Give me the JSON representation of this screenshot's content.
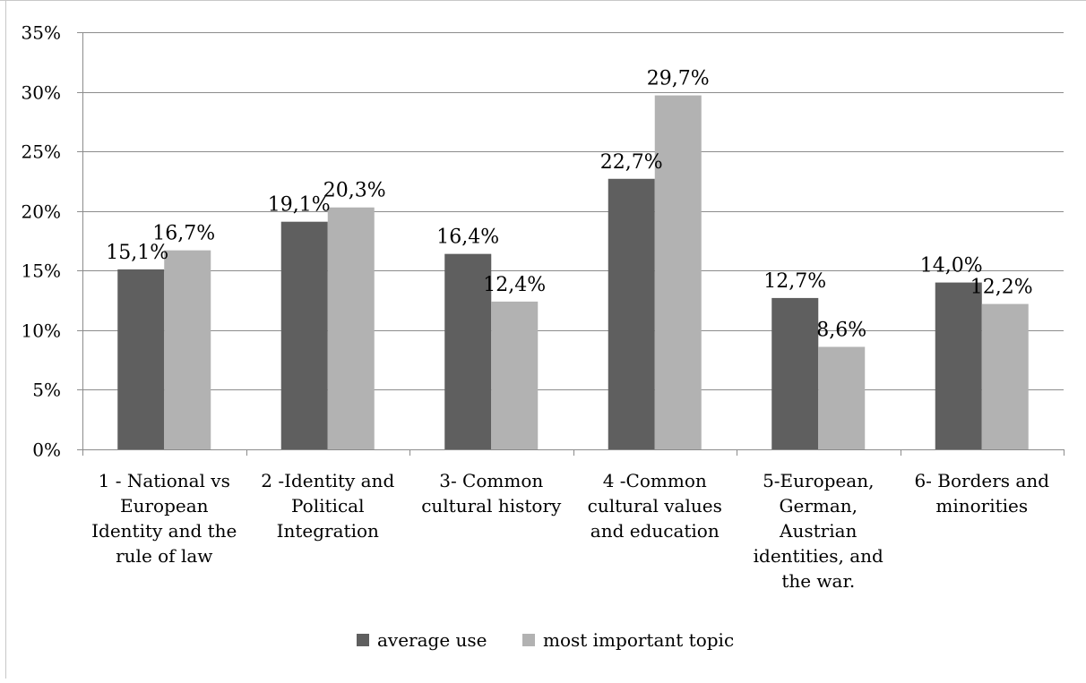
{
  "chart_data": {
    "type": "bar",
    "title": "",
    "xlabel": "",
    "ylabel": "",
    "categories": [
      [
        "1 - National vs",
        "European",
        "Identity and the",
        "rule of law"
      ],
      [
        "2 -Identity and",
        "Political",
        "Integration"
      ],
      [
        "3- Common",
        "cultural history"
      ],
      [
        "4 -Common",
        "cultural values",
        "and education"
      ],
      [
        "5-European,",
        "German,",
        "Austrian",
        "identities, and",
        "the war."
      ],
      [
        "6- Borders and",
        "minorities"
      ]
    ],
    "series": [
      {
        "name": "average use",
        "color": "#5f5f5f",
        "values": [
          15.1,
          19.1,
          16.4,
          22.7,
          12.7,
          14.0
        ],
        "labels": [
          "15,1%",
          "19,1%",
          "16,4%",
          "22,7%",
          "12,7%",
          "14,0%"
        ]
      },
      {
        "name": "most important topic",
        "color": "#b2b2b2",
        "values": [
          16.7,
          20.3,
          12.4,
          29.7,
          8.6,
          12.2
        ],
        "labels": [
          "16,7%",
          "20,3%",
          "12,4%",
          "29,7%",
          "8,6%",
          "12,2%"
        ]
      }
    ],
    "yticks": [
      "0%",
      "5%",
      "10%",
      "15%",
      "20%",
      "25%",
      "30%",
      "35%"
    ],
    "ylim": [
      0,
      35
    ],
    "grid": true,
    "legend_position": "bottom"
  }
}
